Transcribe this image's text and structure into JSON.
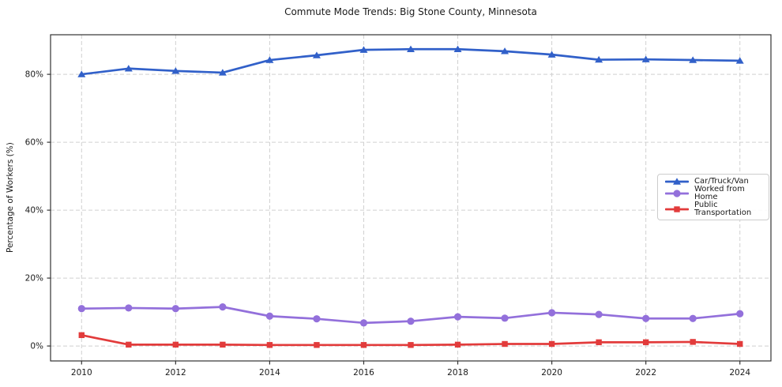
{
  "chart_data": {
    "type": "line",
    "title": "Commute Mode Trends: Big Stone County, Minnesota",
    "xlabel": "",
    "ylabel": "Percentage of Workers (%)",
    "x": [
      2010,
      2011,
      2012,
      2013,
      2014,
      2015,
      2016,
      2017,
      2018,
      2019,
      2020,
      2021,
      2022,
      2023,
      2024
    ],
    "series": [
      {
        "name": "Car/Truck/Van",
        "color": "#3160c9",
        "marker": "triangle",
        "values": [
          80.0,
          81.7,
          81.0,
          80.5,
          84.2,
          85.6,
          87.2,
          87.4,
          87.4,
          86.8,
          85.8,
          84.3,
          84.4,
          84.2,
          84.0
        ]
      },
      {
        "name": "Worked from Home",
        "color": "#9370db",
        "marker": "circle",
        "values": [
          11.0,
          11.2,
          11.0,
          11.5,
          8.8,
          8.0,
          6.8,
          7.3,
          8.6,
          8.2,
          9.8,
          9.3,
          8.1,
          8.1,
          9.5
        ]
      },
      {
        "name": "Public Transportation",
        "color": "#e23b3b",
        "marker": "square",
        "values": [
          3.2,
          0.4,
          0.4,
          0.4,
          0.3,
          0.3,
          0.3,
          0.3,
          0.4,
          0.6,
          0.6,
          1.1,
          1.1,
          1.2,
          0.6
        ]
      }
    ],
    "xticks": {
      "values": [
        2010,
        2012,
        2014,
        2016,
        2018,
        2020,
        2022,
        2024
      ],
      "labels": [
        "2010",
        "2012",
        "2014",
        "2016",
        "2018",
        "2020",
        "2022",
        "2024"
      ]
    },
    "yticks": {
      "values": [
        0,
        20,
        40,
        60,
        80
      ],
      "labels": [
        "0%",
        "20%",
        "40%",
        "60%",
        "80%"
      ]
    },
    "xlim": [
      2009.34,
      2024.66
    ],
    "ylim": [
      -4.4,
      91.65
    ],
    "grid": true,
    "legend_position": "center right"
  },
  "colors": {
    "background": "#ffffff",
    "grid": "#d0d0d0",
    "spine": "#333333",
    "tick_text": "#1a1a1a",
    "legend_border": "#cccccc"
  }
}
